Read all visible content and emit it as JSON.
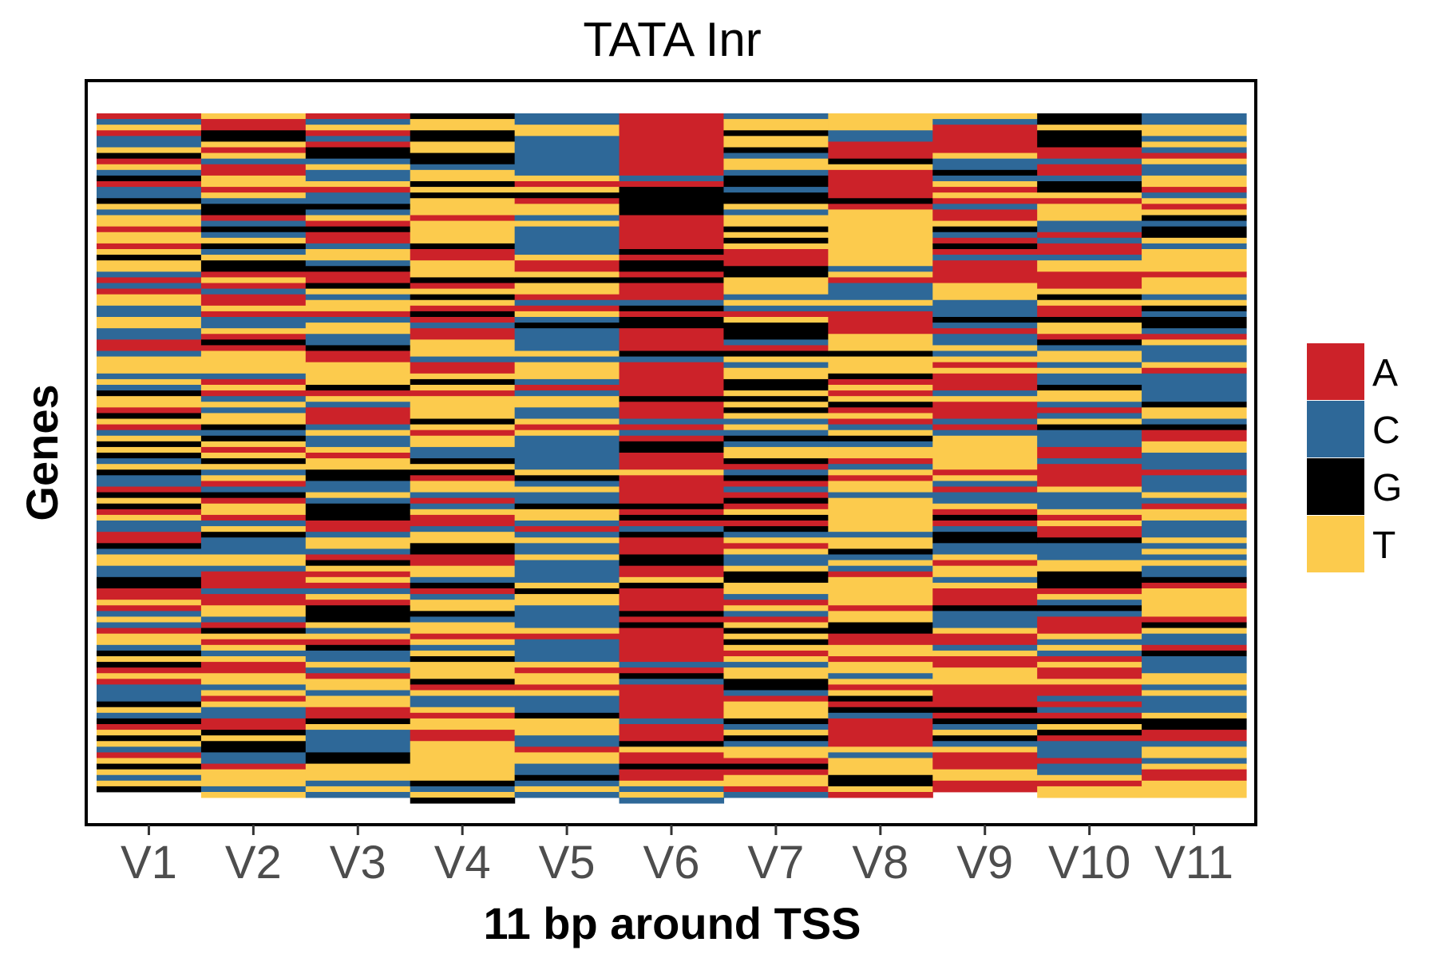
{
  "chart_data": {
    "type": "heatmap",
    "title": "TATA Inr",
    "xlabel": "11 bp around TSS",
    "ylabel": "Genes",
    "categories": [
      "V1",
      "V2",
      "V3",
      "V4",
      "V5",
      "V6",
      "V7",
      "V8",
      "V9",
      "V10",
      "V11"
    ],
    "row_count": 120,
    "legend": {
      "position": "right",
      "entries": [
        {
          "label": "A",
          "color": "#CC2229"
        },
        {
          "label": "C",
          "color": "#2E6898"
        },
        {
          "label": "G",
          "color": "#000000"
        },
        {
          "label": "T",
          "color": "#FCCB4D"
        }
      ]
    },
    "columns": [
      {
        "name": "V1",
        "sequence": "ACTACCTGATCGACCGTCTTATTATGTTCACATTCCTTCCAACTTTCTCGTTAGTACTGTGCTGCCAGTGATCCAAGCTTCCGGAATACTCATTCGTGATACCCGTCGATGTCATGTCTG"
      },
      {
        "name": "V2",
        "sequence": "TAAGGTATCAATTATCGGACGCTGCTGGATACAATACCTAGATTTTCATACTCTTGCGTATGTCTACGATTACTGCCCTTCAAACAATTCAGTATCTAATTCTATCCAAGTGGCCATTTCT"
      },
      {
        "name": "V3",
        "sequence": "ACTACAGGCTCCTACCGCTAGAACTTCGAAGTCTTACTTCCGAATTTTGATCAAACTCCTATTGGCCTCGGGAACTTCAGTATACTAGGGTCTAGCCTCATTCTTAAGTCCCCGGTTTCTC"
      },
      {
        "name": "V4",
        "sequence": "GTTGGTTGGCTTGTGTTTATTTTGAATTTGATGTAGACAATTTCAATGTATTTTGTATTCCGTGATTCACTAACTTGGAATTCGACTTGCTTATCTGTTTGATCCTATTAATTTTTTTGCTG"
      },
      {
        "name": "V5",
        "sequence": "CCTTCCCCCCCTATGATTCTCCCCCTAATGTTACATCGCCCCTCTTTCACTTCCTATCCCCCCTGCTCCGTTCACTCCTCCCCTGTTCCCCTACCCCTATTATCCCGTTTCCATTCCGCTC"
      },
      {
        "name": "V6",
        "sequence": "AAAAAAAAAAACAGGGGGAAAAAAGAGGAGAAACGAGGAAAAGCAAAAAAGAAACACAGGAAATAAAAAGAGACGAAAGGAATGAAAAGAGAAAAAACAGCAAAAAACAAAGTAAGAATCTC"
      },
      {
        "name": "V7",
        "sequence": "CTTGTTGCTTCGGCGGTCTTGTGTAAAGGTTTCTCATGGGCAGTCTTGGTGTGTCTCGCTTGACGACAGATGAGCTATCCTGGTTCATCATGTGTATCTTGGCATTTGCTGCTTAGATTAC"
      },
      {
        "name": "V8",
        "sequence": "TTTCCAAAGTAAAAAGATTTTTTTTTTCTACCCTCAAAATTTGTTTGATATGATACTGCTTACTATTCTTTTTTCTTGCTCATTTTTATTGGAATTATTCTATGAGCAAAAATCTTTGGTA"
      },
      {
        "name": "V9",
        "sequence": "TCAAAAATCCGCTATACAATGCAGACAAAATTTCCCGCACCTCTATAAACTAAACACTTTTTTATCACCTAGACGGCCTATTCTAAAGCCCTAACTAATTTAAAAGAGCTGCTAAATTAA"
      },
      {
        "name": "V10",
        "sequence": "GGTGGGAACAACGGTATTTCCACAACTTAAATGTAAGTTAGCTTCTCCGTTCACTGCCCAACAAAATCCCTATAAGCCCTTGGGATCGCAAATCTCATAATAACACAGTGACCCACCTATT"
      },
      {
        "name": "V11",
        "sequence": "CCTTCTCATCCTTACTATGCGGTCTTTTATTTCTGCGGCATCCCTACCCCCGTTCGAATTCCCACCCTCATTCCCTCTCTCCGATTTTTAGTCCAGCCCTTCTCCCTGGAACTTCTAATTT"
      }
    ]
  }
}
